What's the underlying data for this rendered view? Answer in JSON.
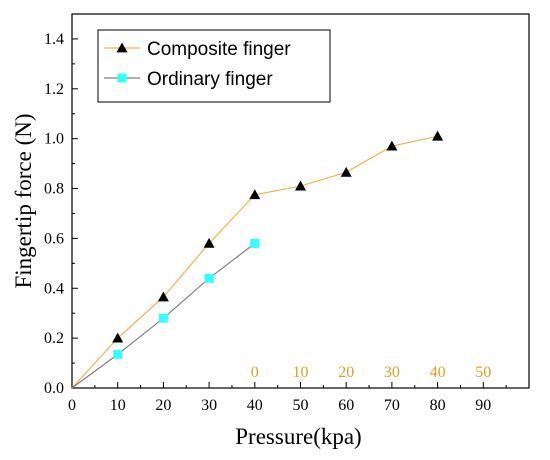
{
  "chart_data": {
    "type": "line",
    "xlabel": "Pressure(kpa)",
    "ylabel": "Fingertip force (N)",
    "xlim": [
      0,
      100
    ],
    "ylim": [
      0,
      1.5
    ],
    "x_ticks": [
      0,
      10,
      20,
      30,
      40,
      50,
      60,
      70,
      80,
      90
    ],
    "y_ticks": [
      "0.0",
      "0.2",
      "0.4",
      "0.6",
      "0.8",
      "1.0",
      "1.2",
      "1.4"
    ],
    "grid": false,
    "legend_position": "top-left",
    "series": [
      {
        "name": "Composite finger",
        "marker": "triangle",
        "marker_color": "#000000",
        "line_color": "#f2b24a",
        "x": [
          0,
          10,
          20,
          30,
          40,
          50,
          60,
          70,
          80
        ],
        "y": [
          0.0,
          0.2,
          0.365,
          0.58,
          0.775,
          0.81,
          0.865,
          0.97,
          1.01
        ]
      },
      {
        "name": "Ordinary finger",
        "marker": "square",
        "marker_color": "#33ffff",
        "line_color": "#808080",
        "x": [
          0,
          10,
          20,
          30,
          40
        ],
        "y": [
          0.0,
          0.135,
          0.28,
          0.44,
          0.58
        ]
      }
    ],
    "annotations": {
      "color": "#e0a020",
      "labels": [
        "0",
        "10",
        "20",
        "30",
        "40",
        "50"
      ],
      "x_positions": [
        40,
        50,
        60,
        70,
        80,
        90
      ],
      "y_value": 0.065
    }
  }
}
